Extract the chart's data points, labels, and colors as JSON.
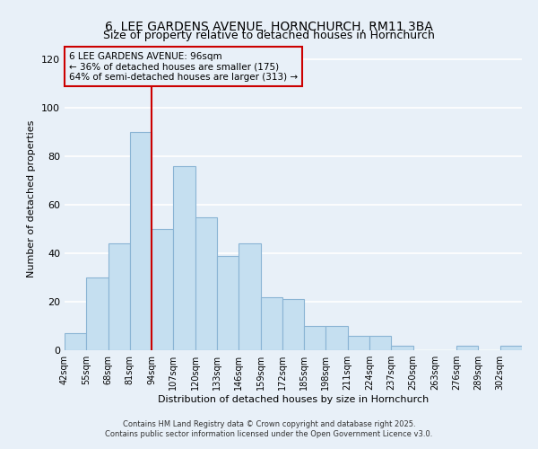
{
  "title": "6, LEE GARDENS AVENUE, HORNCHURCH, RM11 3BA",
  "subtitle": "Size of property relative to detached houses in Hornchurch",
  "xlabel": "Distribution of detached houses by size in Hornchurch",
  "ylabel": "Number of detached properties",
  "bar_heights": [
    7,
    30,
    44,
    90,
    50,
    76,
    55,
    39,
    44,
    22,
    21,
    10,
    10,
    6,
    6,
    2,
    0,
    0,
    2,
    0,
    2
  ],
  "bin_labels": [
    "42sqm",
    "55sqm",
    "68sqm",
    "81sqm",
    "94sqm",
    "107sqm",
    "120sqm",
    "133sqm",
    "146sqm",
    "159sqm",
    "172sqm",
    "185sqm",
    "198sqm",
    "211sqm",
    "224sqm",
    "237sqm",
    "250sqm",
    "263sqm",
    "276sqm",
    "289sqm",
    "302sqm"
  ],
  "bin_left_edges": [
    42,
    55,
    68,
    81,
    94,
    107,
    120,
    133,
    146,
    159,
    172,
    185,
    198,
    211,
    224,
    237,
    250,
    263,
    276,
    289,
    302
  ],
  "bin_width": 13,
  "bar_color": "#c5dff0",
  "bar_edgecolor": "#8ab4d4",
  "vline_x": 94,
  "vline_color": "#cc0000",
  "annotation_title": "6 LEE GARDENS AVENUE: 96sqm",
  "annotation_line1": "← 36% of detached houses are smaller (175)",
  "annotation_line2": "64% of semi-detached houses are larger (313) →",
  "annotation_box_facecolor": "#e8f0f8",
  "annotation_box_edgecolor": "#cc0000",
  "ylim": [
    0,
    125
  ],
  "yticks": [
    0,
    20,
    40,
    60,
    80,
    100,
    120
  ],
  "footer1": "Contains HM Land Registry data © Crown copyright and database right 2025.",
  "footer2": "Contains public sector information licensed under the Open Government Licence v3.0.",
  "bg_color": "#e8f0f8",
  "plot_bg_color": "#e8f0f8",
  "grid_color": "#ffffff"
}
